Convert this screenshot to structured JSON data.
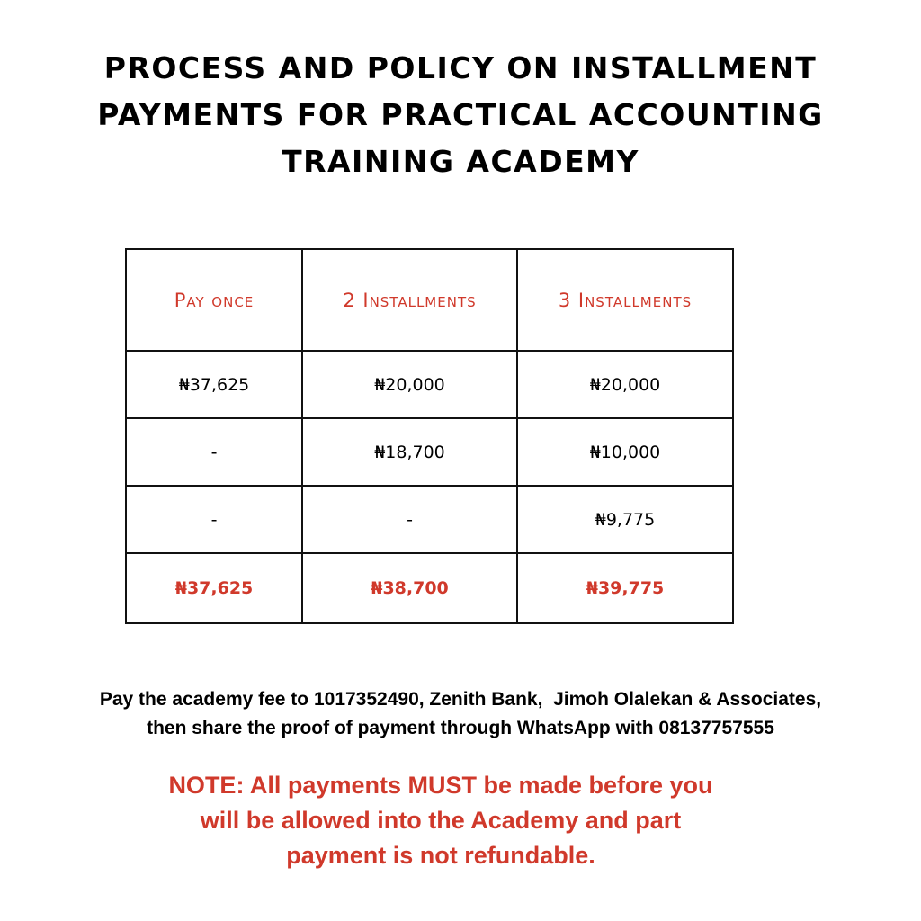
{
  "title": {
    "lines": [
      "PROCESS AND POLICY ON INSTALLMENT",
      "PAYMENTS FOR PRACTICAL ACCOUNTING",
      "TRAINING ACADEMY"
    ]
  },
  "table": {
    "headers": [
      "Pay once",
      "2 Installments",
      "3 Installments"
    ],
    "rows": [
      [
        "₦37,625",
        "₦20,000",
        "₦20,000"
      ],
      [
        "-",
        "₦18,700",
        "₦10,000"
      ],
      [
        "-",
        "-",
        "₦9,775"
      ]
    ],
    "totals": [
      "₦37,625",
      "₦38,700",
      "₦39,775"
    ]
  },
  "payment_instructions": {
    "lines": [
      "Pay the academy fee to 1017352490, Zenith Bank,  Jimoh Olalekan & Associates,",
      "then share the proof of payment through WhatsApp with 08137757555"
    ]
  },
  "note": {
    "lines": [
      "NOTE: All payments MUST be made before you",
      "will be allowed into the Academy and part",
      "payment is not refundable."
    ]
  },
  "colors": {
    "accent": "#d0392b",
    "text": "#000000",
    "border": "#111111"
  }
}
